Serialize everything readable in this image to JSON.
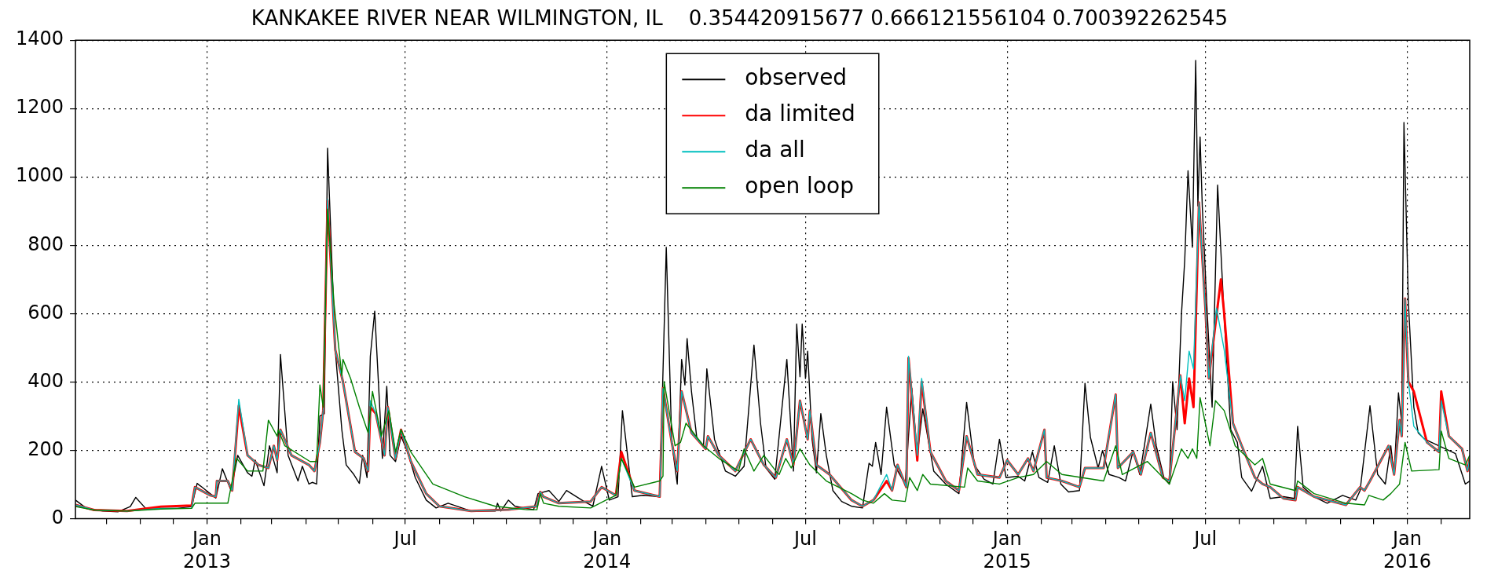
{
  "chart_data": {
    "type": "line",
    "title": "KANKAKEE RIVER NEAR WILMINGTON, IL    0.354420915677 0.666121556104 0.700392262545",
    "xlim": [
      "2012-09-03",
      "2016-02-27"
    ],
    "xticks": [
      {
        "value": "2012-10-01",
        "label": null
      },
      {
        "value": "2012-11-01",
        "label": null
      },
      {
        "value": "2012-12-01",
        "label": null
      },
      {
        "value": "2013-01-01",
        "label": "Jan\n2013"
      },
      {
        "value": "2013-02-01",
        "label": null
      },
      {
        "value": "2013-03-01",
        "label": null
      },
      {
        "value": "2013-04-01",
        "label": null
      },
      {
        "value": "2013-05-01",
        "label": null
      },
      {
        "value": "2013-06-01",
        "label": null
      },
      {
        "value": "2013-07-01",
        "label": "Jul"
      },
      {
        "value": "2013-08-01",
        "label": null
      },
      {
        "value": "2013-09-01",
        "label": null
      },
      {
        "value": "2013-10-01",
        "label": null
      },
      {
        "value": "2013-11-01",
        "label": null
      },
      {
        "value": "2013-12-01",
        "label": null
      },
      {
        "value": "2014-01-01",
        "label": "Jan\n2014"
      },
      {
        "value": "2014-02-01",
        "label": null
      },
      {
        "value": "2014-03-01",
        "label": null
      },
      {
        "value": "2014-04-01",
        "label": null
      },
      {
        "value": "2014-05-01",
        "label": null
      },
      {
        "value": "2014-06-01",
        "label": null
      },
      {
        "value": "2014-07-01",
        "label": "Jul"
      },
      {
        "value": "2014-08-01",
        "label": null
      },
      {
        "value": "2014-09-01",
        "label": null
      },
      {
        "value": "2014-10-01",
        "label": null
      },
      {
        "value": "2014-11-01",
        "label": null
      },
      {
        "value": "2014-12-01",
        "label": null
      },
      {
        "value": "2015-01-01",
        "label": "Jan\n2015"
      },
      {
        "value": "2015-02-01",
        "label": null
      },
      {
        "value": "2015-03-01",
        "label": null
      },
      {
        "value": "2015-04-01",
        "label": null
      },
      {
        "value": "2015-05-01",
        "label": null
      },
      {
        "value": "2015-06-01",
        "label": null
      },
      {
        "value": "2015-07-01",
        "label": "Jul"
      },
      {
        "value": "2015-08-01",
        "label": null
      },
      {
        "value": "2015-09-01",
        "label": null
      },
      {
        "value": "2015-10-01",
        "label": null
      },
      {
        "value": "2015-11-01",
        "label": null
      },
      {
        "value": "2015-12-01",
        "label": null
      },
      {
        "value": "2016-01-01",
        "label": "Jan\n2016"
      },
      {
        "value": "2016-02-01",
        "label": null
      }
    ],
    "ylim": [
      0,
      1400
    ],
    "yticks": [
      0,
      200,
      400,
      600,
      800,
      1000,
      1200,
      1400
    ],
    "grid": true,
    "legend": "top",
    "line_style": "solid",
    "series": [
      {
        "name": "observed",
        "color": "#000000",
        "x": [
          "2012-09-03",
          "2012-09-13",
          "2012-09-28",
          "2012-10-12",
          "2012-10-23",
          "2012-10-28",
          "2012-11-06",
          "2012-12-05",
          "2012-12-18",
          "2012-12-23",
          "2013-01-09",
          "2013-01-15",
          "2013-01-23",
          "2013-01-29",
          "2013-02-07",
          "2013-02-11",
          "2013-02-14",
          "2013-02-22",
          "2013-02-27",
          "2013-03-06",
          "2013-03-09",
          "2013-03-16",
          "2013-03-25",
          "2013-03-29",
          "2013-04-04",
          "2013-04-07",
          "2013-04-11",
          "2013-04-14",
          "2013-04-18",
          "2013-04-21",
          "2013-04-28",
          "2013-05-04",
          "2013-05-08",
          "2013-05-15",
          "2013-05-20",
          "2013-05-23",
          "2013-05-27",
          "2013-05-30",
          "2013-06-03",
          "2013-06-10",
          "2013-06-14",
          "2013-06-17",
          "2013-06-22",
          "2013-06-27",
          "2013-07-03",
          "2013-07-10",
          "2013-07-20",
          "2013-07-29",
          "2013-08-09",
          "2013-08-30",
          "2013-09-21",
          "2013-09-23",
          "2013-09-26",
          "2013-10-03",
          "2013-10-09",
          "2013-10-26",
          "2013-10-30",
          "2013-11-09",
          "2013-11-18",
          "2013-11-25",
          "2013-12-11",
          "2013-12-19",
          "2013-12-27",
          "2014-01-03",
          "2014-01-11",
          "2014-01-15",
          "2014-01-24",
          "2014-02-03",
          "2014-02-18",
          "2014-02-24",
          "2014-03-01",
          "2014-03-06",
          "2014-03-10",
          "2014-03-13",
          "2014-03-15",
          "2014-03-19",
          "2014-03-24",
          "2014-03-30",
          "2014-04-02",
          "2014-04-09",
          "2014-04-19",
          "2014-04-28",
          "2014-05-06",
          "2014-05-15",
          "2014-05-21",
          "2014-05-26",
          "2014-06-03",
          "2014-06-14",
          "2014-06-20",
          "2014-06-23",
          "2014-06-26",
          "2014-06-28",
          "2014-07-01",
          "2014-07-03",
          "2014-07-07",
          "2014-07-11",
          "2014-07-15",
          "2014-07-20",
          "2014-07-26",
          "2014-08-03",
          "2014-08-12",
          "2014-08-22",
          "2014-08-28",
          "2014-08-31",
          "2014-09-03",
          "2014-09-08",
          "2014-09-13",
          "2014-09-20",
          "2014-09-30",
          "2014-10-06",
          "2014-10-11",
          "2014-10-16",
          "2014-10-26",
          "2014-11-06",
          "2014-11-18",
          "2014-11-25",
          "2014-12-02",
          "2014-12-11",
          "2014-12-19",
          "2014-12-25",
          "2014-12-31",
          "2015-01-11",
          "2015-01-17",
          "2015-01-24",
          "2015-01-30",
          "2015-02-07",
          "2015-02-13",
          "2015-02-19",
          "2015-02-26",
          "2015-03-08",
          "2015-03-13",
          "2015-03-18",
          "2015-03-25",
          "2015-03-29",
          "2015-04-04",
          "2015-04-13",
          "2015-04-19",
          "2015-04-26",
          "2015-05-02",
          "2015-05-06",
          "2015-05-12",
          "2015-05-17",
          "2015-05-24",
          "2015-05-29",
          "2015-06-01",
          "2015-06-05",
          "2015-06-09",
          "2015-06-12",
          "2015-06-15",
          "2015-06-19",
          "2015-06-22",
          "2015-06-24",
          "2015-06-26",
          "2015-06-28",
          "2015-07-02",
          "2015-07-07",
          "2015-07-12",
          "2015-07-18",
          "2015-07-24",
          "2015-07-30",
          "2015-08-03",
          "2015-08-12",
          "2015-08-22",
          "2015-08-29",
          "2015-09-10",
          "2015-09-20",
          "2015-09-23",
          "2015-09-28",
          "2015-10-08",
          "2015-10-20",
          "2015-11-03",
          "2015-11-15",
          "2015-11-19",
          "2015-11-28",
          "2015-12-05",
          "2015-12-12",
          "2015-12-17",
          "2015-12-20",
          "2015-12-24",
          "2015-12-27",
          "2015-12-29",
          "2016-01-02",
          "2016-01-07",
          "2016-01-11",
          "2016-01-17",
          "2016-02-14",
          "2016-02-23",
          "2016-02-27"
        ],
        "values": [
          54,
          30,
          22,
          20,
          35,
          62,
          30,
          30,
          35,
          103,
          60,
          146,
          82,
          185,
          134,
          124,
          171,
          96,
          213,
          134,
          480,
          185,
          110,
          153,
          101,
          106,
          101,
          300,
          307,
          1084,
          494,
          260,
          157,
          129,
          103,
          185,
          120,
          475,
          607,
          176,
          387,
          185,
          167,
          241,
          195,
          120,
          54,
          31,
          45,
          22,
          22,
          45,
          22,
          54,
          36,
          26,
          73,
          82,
          50,
          82,
          50,
          36,
          153,
          54,
          64,
          316,
          64,
          68,
          64,
          794,
          223,
          101,
          466,
          391,
          527,
          372,
          232,
          213,
          438,
          232,
          139,
          124,
          153,
          508,
          279,
          148,
          115,
          466,
          139,
          569,
          415,
          569,
          410,
          490,
          232,
          134,
          307,
          185,
          82,
          50,
          36,
          31,
          162,
          153,
          223,
          129,
          326,
          157,
          101,
          382,
          185,
          321,
          139,
          101,
          73,
          340,
          157,
          115,
          101,
          232,
          120,
          124,
          110,
          195,
          120,
          106,
          213,
          101,
          78,
          82,
          396,
          237,
          148,
          199,
          129,
          120,
          110,
          199,
          129,
          209,
          335,
          213,
          120,
          101,
          401,
          260,
          597,
          756,
          1018,
          794,
          1341,
          915,
          1117,
          915,
          635,
          326,
          976,
          588,
          260,
          223,
          120,
          80,
          153,
          59,
          64,
          59,
          270,
          92,
          64,
          45,
          68,
          54,
          82,
          330,
          129,
          101,
          213,
          129,
          368,
          279,
          1159,
          635,
          326,
          251,
          232,
          190,
          101,
          110
        ]
      },
      {
        "name": "da limited",
        "color": "#ff0000",
        "x": [
          "2012-09-03",
          "2012-09-20",
          "2012-10-20",
          "2012-11-20",
          "2012-12-18",
          "2012-12-21",
          "2013-01-04",
          "2013-01-09",
          "2013-01-10",
          "2013-01-20",
          "2013-01-24",
          "2013-01-30",
          "2013-02-07",
          "2013-02-17",
          "2013-02-26",
          "2013-03-03",
          "2013-03-06",
          "2013-03-09",
          "2013-03-19",
          "2013-04-04",
          "2013-04-09",
          "2013-04-14",
          "2013-04-17",
          "2013-04-21",
          "2013-04-28",
          "2013-05-05",
          "2013-05-16",
          "2013-05-24",
          "2013-05-28",
          "2013-05-30",
          "2013-06-04",
          "2013-06-12",
          "2013-06-15",
          "2013-06-22",
          "2013-06-27",
          "2013-07-06",
          "2013-07-20",
          "2013-08-01",
          "2013-08-30",
          "2013-10-03",
          "2013-10-29",
          "2013-11-01",
          "2013-11-04",
          "2013-11-18",
          "2013-12-17",
          "2013-12-27",
          "2014-01-09",
          "2014-01-14",
          "2014-01-26",
          "2014-02-18",
          "2014-02-21",
          "2014-03-01",
          "2014-03-06",
          "2014-03-10",
          "2014-03-19",
          "2014-04-01",
          "2014-04-03",
          "2014-04-13",
          "2014-04-28",
          "2014-05-12",
          "2014-05-24",
          "2014-06-04",
          "2014-06-14",
          "2014-06-20",
          "2014-06-26",
          "2014-07-03",
          "2014-07-05",
          "2014-07-11",
          "2014-07-23",
          "2014-08-12",
          "2014-08-22",
          "2014-09-01",
          "2014-09-13",
          "2014-09-18",
          "2014-09-23",
          "2014-10-01",
          "2014-10-03",
          "2014-10-11",
          "2014-10-15",
          "2014-10-23",
          "2014-11-06",
          "2014-11-18",
          "2014-11-25",
          "2014-12-05",
          "2014-12-25",
          "2015-01-01",
          "2015-01-11",
          "2015-01-20",
          "2015-01-25",
          "2015-02-04",
          "2015-02-06",
          "2015-02-20",
          "2015-03-08",
          "2015-03-13",
          "2015-03-30",
          "2015-04-10",
          "2015-04-12",
          "2015-04-26",
          "2015-05-03",
          "2015-05-12",
          "2015-05-23",
          "2015-05-29",
          "2015-06-08",
          "2015-06-12",
          "2015-06-16",
          "2015-06-20",
          "2015-06-25",
          "2015-07-01",
          "2015-07-04",
          "2015-07-15",
          "2015-07-18",
          "2015-07-26",
          "2015-08-03",
          "2015-08-15",
          "2015-08-22",
          "2015-08-29",
          "2015-09-10",
          "2015-09-21",
          "2015-09-23",
          "2015-10-08",
          "2015-11-06",
          "2015-11-19",
          "2015-11-23",
          "2015-11-28",
          "2015-12-15",
          "2015-12-20",
          "2015-12-25",
          "2015-12-27",
          "2015-12-30",
          "2016-01-02",
          "2016-01-07",
          "2016-01-19",
          "2016-01-30",
          "2016-02-01",
          "2016-02-08",
          "2016-02-20",
          "2016-02-25",
          "2016-02-27"
        ],
        "values": [
          40,
          25,
          22,
          35,
          38,
          92,
          68,
          64,
          110,
          110,
          82,
          330,
          185,
          157,
          148,
          213,
          171,
          260,
          185,
          157,
          139,
          223,
          316,
          930,
          494,
          401,
          195,
          176,
          139,
          326,
          307,
          185,
          326,
          176,
          260,
          167,
          73,
          36,
          22,
          26,
          36,
          78,
          64,
          45,
          50,
          92,
          68,
          195,
          82,
          64,
          382,
          223,
          139,
          372,
          251,
          204,
          241,
          185,
          139,
          232,
          157,
          120,
          232,
          157,
          345,
          232,
          316,
          157,
          129,
          54,
          36,
          54,
          110,
          82,
          157,
          92,
          470,
          170,
          400,
          195,
          110,
          82,
          241,
          129,
          120,
          171,
          129,
          176,
          139,
          260,
          120,
          110,
          92,
          148,
          148,
          363,
          148,
          195,
          129,
          251,
          120,
          110,
          419,
          279,
          410,
          326,
          925,
          607,
          410,
          700,
          600,
          279,
          213,
          120,
          101,
          92,
          59,
          54,
          92,
          64,
          40,
          92,
          82,
          110,
          213,
          129,
          288,
          241,
          644,
          401,
          372,
          223,
          195,
          372,
          241,
          204,
          139,
          176
        ]
      },
      {
        "name": "da all",
        "color": "#00bfbf",
        "x": [
          "2012-09-03",
          "2012-09-20",
          "2012-10-20",
          "2012-11-20",
          "2012-12-18",
          "2012-12-21",
          "2013-01-04",
          "2013-01-09",
          "2013-01-10",
          "2013-01-20",
          "2013-01-24",
          "2013-01-30",
          "2013-02-07",
          "2013-02-17",
          "2013-02-26",
          "2013-03-03",
          "2013-03-06",
          "2013-03-09",
          "2013-03-19",
          "2013-04-04",
          "2013-04-09",
          "2013-04-14",
          "2013-04-17",
          "2013-04-21",
          "2013-04-28",
          "2013-05-05",
          "2013-05-16",
          "2013-05-24",
          "2013-05-28",
          "2013-05-30",
          "2013-06-04",
          "2013-06-12",
          "2013-06-15",
          "2013-06-22",
          "2013-06-27",
          "2013-07-06",
          "2013-07-20",
          "2013-08-01",
          "2013-08-30",
          "2013-10-03",
          "2013-10-29",
          "2013-11-01",
          "2013-11-04",
          "2013-11-18",
          "2013-12-17",
          "2013-12-27",
          "2014-01-09",
          "2014-01-14",
          "2014-01-26",
          "2014-02-18",
          "2014-02-21",
          "2014-03-01",
          "2014-03-06",
          "2014-03-10",
          "2014-03-19",
          "2014-04-01",
          "2014-04-03",
          "2014-04-13",
          "2014-04-28",
          "2014-05-12",
          "2014-05-24",
          "2014-06-04",
          "2014-06-14",
          "2014-06-20",
          "2014-06-26",
          "2014-07-03",
          "2014-07-05",
          "2014-07-11",
          "2014-07-23",
          "2014-08-12",
          "2014-08-22",
          "2014-09-01",
          "2014-09-13",
          "2014-09-18",
          "2014-09-23",
          "2014-10-01",
          "2014-10-03",
          "2014-10-11",
          "2014-10-15",
          "2014-10-23",
          "2014-11-06",
          "2014-11-18",
          "2014-11-25",
          "2014-12-05",
          "2014-12-25",
          "2015-01-01",
          "2015-01-11",
          "2015-01-20",
          "2015-01-25",
          "2015-02-04",
          "2015-02-06",
          "2015-02-20",
          "2015-03-08",
          "2015-03-13",
          "2015-03-30",
          "2015-04-10",
          "2015-04-12",
          "2015-04-26",
          "2015-05-03",
          "2015-05-12",
          "2015-05-23",
          "2015-05-29",
          "2015-06-08",
          "2015-06-12",
          "2015-06-16",
          "2015-06-20",
          "2015-06-25",
          "2015-07-01",
          "2015-07-04",
          "2015-07-11",
          "2015-07-18",
          "2015-07-26",
          "2015-08-03",
          "2015-08-15",
          "2015-08-22",
          "2015-08-29",
          "2015-09-10",
          "2015-09-21",
          "2015-09-23",
          "2015-10-08",
          "2015-11-06",
          "2015-11-19",
          "2015-11-23",
          "2015-11-28",
          "2015-12-15",
          "2015-12-20",
          "2015-12-25",
          "2015-12-27",
          "2015-12-30",
          "2016-01-02",
          "2016-01-07",
          "2016-01-19",
          "2016-01-30",
          "2016-02-01",
          "2016-02-08",
          "2016-02-20",
          "2016-02-25",
          "2016-02-27"
        ],
        "values": [
          40,
          25,
          22,
          30,
          30,
          92,
          68,
          64,
          110,
          110,
          82,
          349,
          185,
          157,
          148,
          213,
          171,
          260,
          185,
          157,
          139,
          223,
          316,
          934,
          494,
          401,
          195,
          176,
          139,
          345,
          307,
          185,
          326,
          176,
          260,
          167,
          73,
          36,
          22,
          26,
          36,
          78,
          64,
          45,
          50,
          92,
          68,
          176,
          82,
          64,
          382,
          223,
          139,
          372,
          251,
          204,
          241,
          185,
          139,
          232,
          157,
          120,
          232,
          157,
          345,
          232,
          316,
          157,
          129,
          54,
          36,
          54,
          129,
          82,
          157,
          92,
          475,
          185,
          410,
          195,
          110,
          82,
          241,
          129,
          120,
          171,
          129,
          176,
          139,
          260,
          120,
          110,
          92,
          148,
          148,
          363,
          148,
          195,
          129,
          251,
          120,
          110,
          419,
          345,
          490,
          438,
          925,
          607,
          410,
          616,
          494,
          279,
          213,
          120,
          101,
          92,
          59,
          54,
          92,
          64,
          40,
          92,
          82,
          110,
          213,
          129,
          288,
          241,
          644,
          401,
          270,
          223,
          195,
          345,
          241,
          204,
          139,
          176
        ]
      },
      {
        "name": "open loop",
        "color": "#008000",
        "x": [
          "2012-09-03",
          "2012-09-20",
          "2012-10-20",
          "2012-11-20",
          "2012-12-18",
          "2012-12-21",
          "2013-01-20",
          "2013-01-28",
          "2013-02-07",
          "2013-02-21",
          "2013-02-26",
          "2013-03-06",
          "2013-03-07",
          "2013-03-13",
          "2013-04-05",
          "2013-04-11",
          "2013-04-14",
          "2013-04-17",
          "2013-04-21",
          "2013-04-27",
          "2013-05-04",
          "2013-05-05",
          "2013-05-12",
          "2013-05-20",
          "2013-05-28",
          "2013-06-01",
          "2013-06-09",
          "2013-06-16",
          "2013-06-22",
          "2013-06-27",
          "2013-07-06",
          "2013-07-26",
          "2013-08-24",
          "2013-09-21",
          "2013-10-20",
          "2013-10-29",
          "2013-11-01",
          "2013-11-04",
          "2013-11-18",
          "2013-12-17",
          "2013-12-31",
          "2014-01-09",
          "2014-01-14",
          "2014-01-26",
          "2014-02-18",
          "2014-02-21",
          "2014-02-22",
          "2014-03-04",
          "2014-03-09",
          "2014-03-14",
          "2014-03-30",
          "2014-04-13",
          "2014-05-01",
          "2014-05-06",
          "2014-05-15",
          "2014-05-24",
          "2014-06-04",
          "2014-06-07",
          "2014-06-13",
          "2014-06-18",
          "2014-06-26",
          "2014-07-05",
          "2014-07-20",
          "2014-08-12",
          "2014-08-22",
          "2014-09-01",
          "2014-09-11",
          "2014-09-18",
          "2014-09-30",
          "2014-10-04",
          "2014-10-11",
          "2014-10-16",
          "2014-10-23",
          "2014-11-23",
          "2014-11-26",
          "2014-12-05",
          "2014-12-25",
          "2015-01-11",
          "2015-01-25",
          "2015-02-06",
          "2015-02-20",
          "2015-03-30",
          "2015-04-10",
          "2015-04-16",
          "2015-05-09",
          "2015-05-29",
          "2015-06-09",
          "2015-06-15",
          "2015-06-19",
          "2015-06-23",
          "2015-06-26",
          "2015-07-05",
          "2015-07-10",
          "2015-07-18",
          "2015-07-28",
          "2015-08-15",
          "2015-08-22",
          "2015-08-29",
          "2015-09-21",
          "2015-09-23",
          "2015-10-08",
          "2015-11-06",
          "2015-11-23",
          "2015-11-27",
          "2015-12-10",
          "2015-12-17",
          "2015-12-25",
          "2015-12-30",
          "2016-01-05",
          "2016-01-30",
          "2016-02-01",
          "2016-02-08",
          "2016-02-23",
          "2016-02-27"
        ],
        "values": [
          35,
          25,
          22,
          28,
          30,
          45,
          45,
          176,
          139,
          139,
          288,
          241,
          260,
          213,
          167,
          167,
          391,
          326,
          906,
          625,
          419,
          466,
          410,
          326,
          251,
          372,
          241,
          316,
          195,
          260,
          195,
          101,
          64,
          36,
          26,
          26,
          73,
          45,
          36,
          31,
          54,
          68,
          176,
          92,
          110,
          124,
          401,
          213,
          223,
          279,
          213,
          176,
          139,
          204,
          139,
          185,
          139,
          129,
          176,
          148,
          204,
          157,
          110,
          73,
          54,
          45,
          73,
          54,
          50,
          120,
          82,
          129,
          101,
          92,
          148,
          110,
          101,
          120,
          129,
          167,
          129,
          110,
          213,
          129,
          167,
          101,
          204,
          176,
          204,
          176,
          354,
          213,
          345,
          316,
          213,
          157,
          176,
          101,
          82,
          110,
          73,
          45,
          40,
          68,
          54,
          73,
          101,
          223,
          139,
          143,
          256,
          176,
          157,
          185
        ]
      }
    ]
  }
}
